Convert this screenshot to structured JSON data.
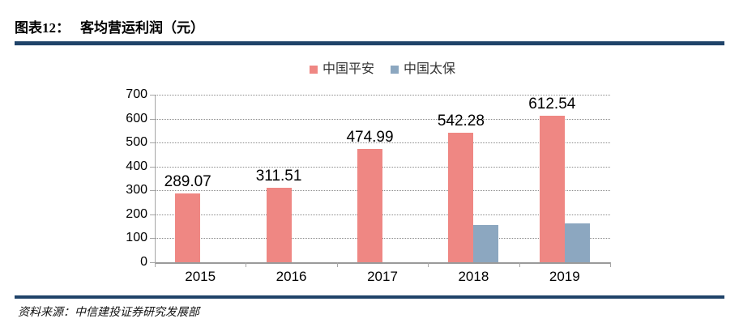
{
  "header": {
    "title_prefix": "图表12：",
    "title_text": "客均营运利润（元）"
  },
  "chart_data": {
    "type": "bar",
    "title": "客均营运利润（元）",
    "categories": [
      "2015",
      "2016",
      "2017",
      "2018",
      "2019"
    ],
    "series": [
      {
        "name": "中国平安",
        "color": "#EF8783",
        "values": [
          289.07,
          311.51,
          474.99,
          542.28,
          612.54
        ],
        "data_labels": [
          "289.07",
          "311.51",
          "474.99",
          "542.28",
          "612.54"
        ]
      },
      {
        "name": "中国太保",
        "color": "#8CA7C0",
        "values": [
          null,
          null,
          null,
          157,
          162
        ],
        "data_labels": [
          null,
          null,
          null,
          null,
          null
        ]
      }
    ],
    "ylim": [
      0,
      700
    ],
    "ytick_step": 100,
    "ytick_labels": [
      "0",
      "100",
      "200",
      "300",
      "400",
      "500",
      "600",
      "700"
    ],
    "grid": "horizontal-dotted",
    "legend_position": "top-center"
  },
  "footer": {
    "source": "资料来源：中信建投证券研究发展部"
  },
  "colors": {
    "accent_rule": "#1F4369",
    "series_pingan": "#EF8783",
    "series_taibao": "#8CA7C0",
    "gridline": "#8C8C8C",
    "axis": "#A6A6A6"
  }
}
